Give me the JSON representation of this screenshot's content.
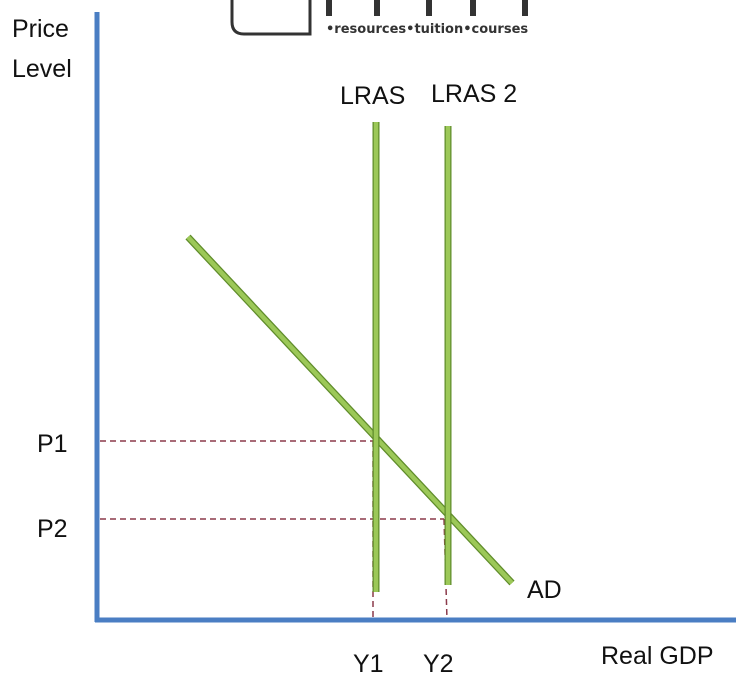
{
  "logo": {
    "tagline": "•resources•tuition•courses"
  },
  "axes": {
    "y_label_line1": "Price",
    "y_label_line2": "Level",
    "x_label": "Real GDP"
  },
  "curves": {
    "lras1": "LRAS",
    "lras2": "LRAS 2",
    "ad": "AD"
  },
  "price_levels": {
    "p1": "P1",
    "p2": "P2"
  },
  "output_levels": {
    "y1": "Y1",
    "y2": "Y2"
  },
  "colors": {
    "axis": "#4a7ec3",
    "curve": "#8fbf4a",
    "curve_edge": "#5f8c2a",
    "guide": "#8b3a4a",
    "text": "#111111"
  }
}
